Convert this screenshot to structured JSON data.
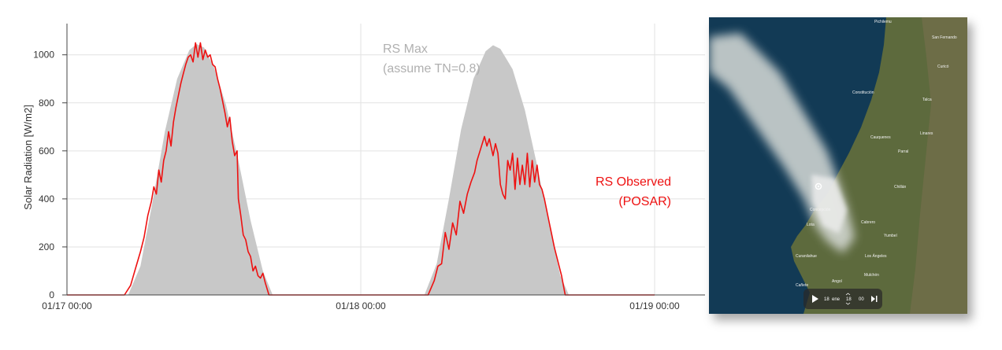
{
  "chart_data": {
    "type": "area",
    "title": "",
    "xlabel": "",
    "ylabel": "Solar Radiation [W/m2]",
    "x_range_hours": [
      0,
      48
    ],
    "ylim": [
      0,
      1130
    ],
    "yticks": [
      0,
      200,
      400,
      600,
      800,
      1000
    ],
    "x_tick_labels": [
      {
        "hour": 0,
        "label": "01/17 00:00"
      },
      {
        "hour": 24,
        "label": "01/18 00:00"
      },
      {
        "hour": 48,
        "label": "01/19 00:00"
      }
    ],
    "grid": true,
    "series": [
      {
        "name": "RS Max (assume TN=0.8)",
        "style": "filled-area",
        "color": "#c8c8c8",
        "points": [
          [
            0,
            0
          ],
          [
            4.7,
            0
          ],
          [
            5,
            0
          ],
          [
            6,
            120
          ],
          [
            7,
            390
          ],
          [
            8,
            680
          ],
          [
            9,
            900
          ],
          [
            10,
            1020
          ],
          [
            10.6,
            1045
          ],
          [
            11.2,
            1030
          ],
          [
            12,
            950
          ],
          [
            13,
            790
          ],
          [
            14,
            560
          ],
          [
            15,
            310
          ],
          [
            16,
            100
          ],
          [
            16.8,
            0
          ],
          [
            24,
            0
          ],
          [
            28.7,
            0
          ],
          [
            29.2,
            0
          ],
          [
            30.2,
            130
          ],
          [
            31.2,
            400
          ],
          [
            32.2,
            690
          ],
          [
            33.2,
            900
          ],
          [
            34.2,
            1015
          ],
          [
            34.8,
            1040
          ],
          [
            35.4,
            1025
          ],
          [
            36.4,
            940
          ],
          [
            37.4,
            770
          ],
          [
            38.4,
            540
          ],
          [
            39.4,
            290
          ],
          [
            40.3,
            80
          ],
          [
            41,
            0
          ],
          [
            48,
            0
          ]
        ]
      },
      {
        "name": "RS Observed (POSAR)",
        "style": "line",
        "color": "#ee1111",
        "points": [
          [
            0,
            0
          ],
          [
            4.7,
            0
          ],
          [
            5.2,
            40
          ],
          [
            5.6,
            110
          ],
          [
            6,
            180
          ],
          [
            6.3,
            240
          ],
          [
            6.6,
            330
          ],
          [
            6.9,
            390
          ],
          [
            7.1,
            450
          ],
          [
            7.3,
            420
          ],
          [
            7.5,
            520
          ],
          [
            7.7,
            470
          ],
          [
            7.9,
            560
          ],
          [
            8.1,
            600
          ],
          [
            8.3,
            680
          ],
          [
            8.5,
            620
          ],
          [
            8.7,
            720
          ],
          [
            8.9,
            780
          ],
          [
            9.1,
            830
          ],
          [
            9.3,
            880
          ],
          [
            9.5,
            920
          ],
          [
            9.7,
            960
          ],
          [
            9.9,
            990
          ],
          [
            10.1,
            1000
          ],
          [
            10.3,
            970
          ],
          [
            10.5,
            1050
          ],
          [
            10.7,
            990
          ],
          [
            10.9,
            1050
          ],
          [
            11.1,
            980
          ],
          [
            11.3,
            1020
          ],
          [
            11.5,
            990
          ],
          [
            11.7,
            1000
          ],
          [
            11.9,
            960
          ],
          [
            12.1,
            950
          ],
          [
            12.3,
            900
          ],
          [
            12.5,
            860
          ],
          [
            12.7,
            810
          ],
          [
            12.9,
            760
          ],
          [
            13.1,
            700
          ],
          [
            13.3,
            740
          ],
          [
            13.5,
            640
          ],
          [
            13.7,
            580
          ],
          [
            13.9,
            600
          ],
          [
            14,
            400
          ],
          [
            14.2,
            330
          ],
          [
            14.4,
            250
          ],
          [
            14.6,
            230
          ],
          [
            14.8,
            180
          ],
          [
            15,
            160
          ],
          [
            15.2,
            100
          ],
          [
            15.4,
            120
          ],
          [
            15.6,
            80
          ],
          [
            15.8,
            70
          ],
          [
            16,
            90
          ],
          [
            16.2,
            50
          ],
          [
            16.5,
            0
          ],
          [
            24,
            0
          ],
          [
            29.5,
            0
          ],
          [
            30,
            60
          ],
          [
            30.3,
            120
          ],
          [
            30.6,
            130
          ],
          [
            30.9,
            260
          ],
          [
            31.2,
            190
          ],
          [
            31.5,
            300
          ],
          [
            31.8,
            250
          ],
          [
            32.1,
            390
          ],
          [
            32.4,
            340
          ],
          [
            32.7,
            420
          ],
          [
            33,
            470
          ],
          [
            33.3,
            510
          ],
          [
            33.5,
            560
          ],
          [
            33.8,
            610
          ],
          [
            34.1,
            660
          ],
          [
            34.3,
            620
          ],
          [
            34.5,
            650
          ],
          [
            34.8,
            580
          ],
          [
            35,
            630
          ],
          [
            35.2,
            590
          ],
          [
            35.4,
            460
          ],
          [
            35.6,
            420
          ],
          [
            35.8,
            400
          ],
          [
            36,
            560
          ],
          [
            36.2,
            520
          ],
          [
            36.4,
            590
          ],
          [
            36.6,
            440
          ],
          [
            36.8,
            570
          ],
          [
            37,
            460
          ],
          [
            37.2,
            540
          ],
          [
            37.4,
            460
          ],
          [
            37.6,
            590
          ],
          [
            37.8,
            450
          ],
          [
            38,
            560
          ],
          [
            38.2,
            470
          ],
          [
            38.4,
            540
          ],
          [
            38.6,
            460
          ],
          [
            38.8,
            440
          ],
          [
            39,
            400
          ],
          [
            39.2,
            350
          ],
          [
            39.4,
            300
          ],
          [
            39.6,
            250
          ],
          [
            39.8,
            200
          ],
          [
            40,
            160
          ],
          [
            40.2,
            120
          ],
          [
            40.4,
            80
          ],
          [
            40.7,
            0
          ],
          [
            48,
            0
          ]
        ]
      }
    ],
    "annotations": [
      {
        "text": "RS Max",
        "color": "#b0b0b0"
      },
      {
        "text": "(assume TN=0.8)",
        "color": "#b0b0b0"
      },
      {
        "text": "RS Observed",
        "color": "#ee1111"
      },
      {
        "text": "(POSAR)",
        "color": "#ee1111"
      }
    ]
  },
  "satellite": {
    "places": [
      "Pichilemu",
      "San Fernando",
      "Curicó",
      "Constitución",
      "Talca",
      "Linares",
      "Cauquenes",
      "Parral",
      "Chillán",
      "Concepción",
      "Lota",
      "Cabrero",
      "Yumbel",
      "Curanilahue",
      "Los Ángeles",
      "Cañete",
      "Angol",
      "Mulchén"
    ],
    "control": {
      "day": "18",
      "month": "ene",
      "hour": "18",
      "minute": "00"
    },
    "colors": {
      "ocean": "#123a55",
      "land": "#5d6a3d",
      "smoke": "#d8dcd8"
    }
  }
}
